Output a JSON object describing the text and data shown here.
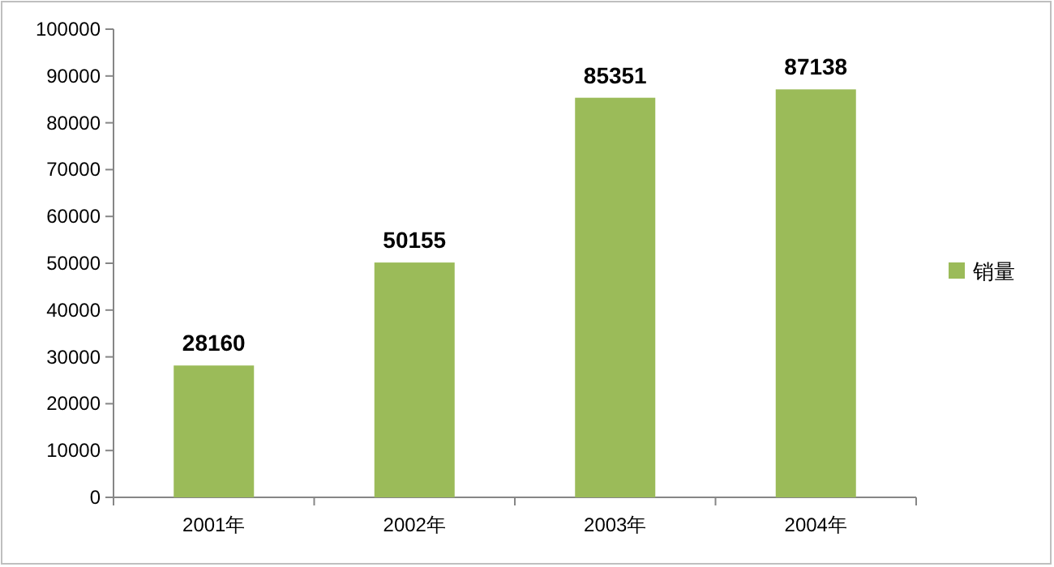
{
  "chart_data": {
    "type": "bar",
    "categories": [
      "2001年",
      "2002年",
      "2003年",
      "2004年"
    ],
    "series": [
      {
        "name": "销量",
        "color": "#9bbb59",
        "values": [
          28160,
          50155,
          85351,
          87138
        ]
      }
    ],
    "ylim": [
      0,
      100000
    ],
    "yticks": [
      0,
      10000,
      20000,
      30000,
      40000,
      50000,
      60000,
      70000,
      80000,
      90000,
      100000
    ],
    "data_labels": true,
    "legend": "right"
  }
}
